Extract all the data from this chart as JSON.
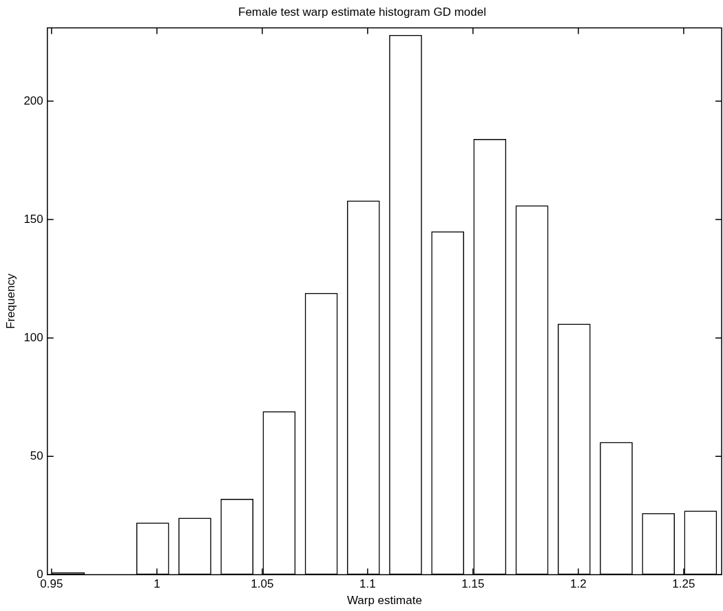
{
  "chart_data": {
    "type": "bar",
    "title": "Female test warp estimate histogram GD model",
    "xlabel": "Warp estimate",
    "ylabel": "Frequency",
    "x": [
      0.958,
      0.978,
      0.998,
      1.018,
      1.038,
      1.058,
      1.078,
      1.098,
      1.118,
      1.138,
      1.158,
      1.178,
      1.198,
      1.218,
      1.238,
      1.258
    ],
    "values": [
      1,
      0,
      22,
      24,
      32,
      69,
      119,
      158,
      228,
      145,
      184,
      156,
      106,
      56,
      26,
      27
    ],
    "color": "#000000",
    "xlim": [
      0.948,
      1.268
    ],
    "xticks": [
      0.95,
      1,
      1.05,
      1.1,
      1.15,
      1.2,
      1.25
    ],
    "ylim": [
      0,
      231
    ],
    "yticks": [
      0,
      50,
      100,
      150,
      200
    ],
    "grid": false,
    "legend": false
  }
}
